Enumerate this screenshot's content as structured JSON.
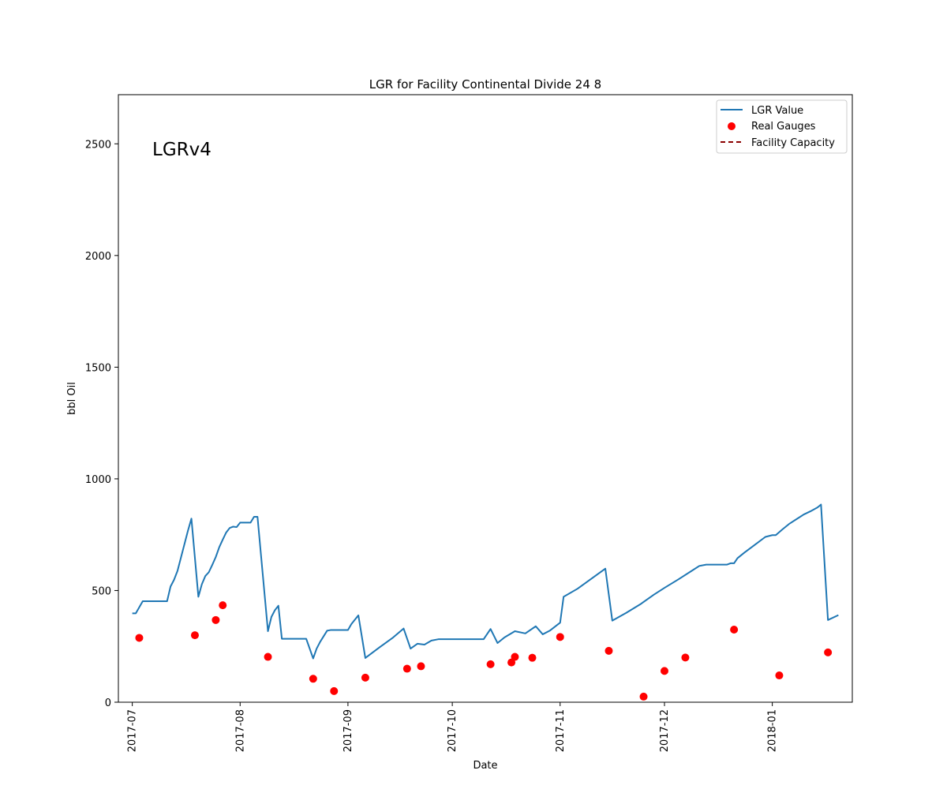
{
  "chart_data": {
    "type": "line",
    "title": "LGR for Facility Continental Divide 24 8",
    "xlabel": "Date",
    "ylabel": "bbl Oil",
    "annotation": "LGRv4",
    "xlim": [
      "2017-06-27",
      "2018-01-24"
    ],
    "ylim": [
      0,
      2720
    ],
    "x_ticks": [
      "2017-07",
      "2017-08",
      "2017-09",
      "2017-10",
      "2017-11",
      "2017-12",
      "2018-01"
    ],
    "y_ticks": [
      0,
      500,
      1000,
      1500,
      2000,
      2500
    ],
    "grid": false,
    "legend_position": "upper right",
    "legend": [
      "LGR Value",
      "Real Gauges",
      "Facility Capacity"
    ],
    "colors": {
      "line": "#1f77b4",
      "gauges": "#ff0000",
      "capacity": "#8b0000"
    },
    "series": [
      {
        "name": "LGR Value",
        "kind": "line",
        "points": [
          [
            "2017-07-01",
            398
          ],
          [
            "2017-07-02",
            398
          ],
          [
            "2017-07-04",
            452
          ],
          [
            "2017-07-06",
            452
          ],
          [
            "2017-07-10",
            452
          ],
          [
            "2017-07-11",
            452
          ],
          [
            "2017-07-12",
            518
          ],
          [
            "2017-07-13",
            548
          ],
          [
            "2017-07-14",
            588
          ],
          [
            "2017-07-15",
            648
          ],
          [
            "2017-07-16",
            708
          ],
          [
            "2017-07-17",
            768
          ],
          [
            "2017-07-18",
            822
          ],
          [
            "2017-07-20",
            472
          ],
          [
            "2017-07-21",
            528
          ],
          [
            "2017-07-22",
            565
          ],
          [
            "2017-07-23",
            582
          ],
          [
            "2017-07-24",
            615
          ],
          [
            "2017-07-25",
            650
          ],
          [
            "2017-07-26",
            694
          ],
          [
            "2017-07-27",
            728
          ],
          [
            "2017-07-28",
            760
          ],
          [
            "2017-07-29",
            780
          ],
          [
            "2017-07-30",
            786
          ],
          [
            "2017-07-31",
            784
          ],
          [
            "2017-08-01",
            804
          ],
          [
            "2017-08-04",
            804
          ],
          [
            "2017-08-05",
            830
          ],
          [
            "2017-08-06",
            830
          ],
          [
            "2017-08-09",
            318
          ],
          [
            "2017-08-10",
            382
          ],
          [
            "2017-08-11",
            412
          ],
          [
            "2017-08-12",
            432
          ],
          [
            "2017-08-13",
            284
          ],
          [
            "2017-08-20",
            284
          ],
          [
            "2017-08-22",
            196
          ],
          [
            "2017-08-23",
            240
          ],
          [
            "2017-08-24",
            270
          ],
          [
            "2017-08-26",
            320
          ],
          [
            "2017-08-27",
            323
          ],
          [
            "2017-09-01",
            323
          ],
          [
            "2017-09-02",
            350
          ],
          [
            "2017-09-04",
            389
          ],
          [
            "2017-09-06",
            198
          ],
          [
            "2017-09-10",
            245
          ],
          [
            "2017-09-14",
            290
          ],
          [
            "2017-09-17",
            330
          ],
          [
            "2017-09-19",
            240
          ],
          [
            "2017-09-21",
            262
          ],
          [
            "2017-09-23",
            258
          ],
          [
            "2017-09-25",
            276
          ],
          [
            "2017-09-27",
            282
          ],
          [
            "2017-10-05",
            282
          ],
          [
            "2017-10-09",
            282
          ],
          [
            "2017-10-10",
            282
          ],
          [
            "2017-10-12",
            328
          ],
          [
            "2017-10-14",
            265
          ],
          [
            "2017-10-16",
            290
          ],
          [
            "2017-10-19",
            318
          ],
          [
            "2017-10-22",
            308
          ],
          [
            "2017-10-25",
            340
          ],
          [
            "2017-10-27",
            304
          ],
          [
            "2017-10-29",
            320
          ],
          [
            "2017-11-01",
            356
          ],
          [
            "2017-11-02",
            472
          ],
          [
            "2017-11-06",
            508
          ],
          [
            "2017-11-14",
            598
          ],
          [
            "2017-11-16",
            365
          ],
          [
            "2017-11-20",
            400
          ],
          [
            "2017-11-24",
            438
          ],
          [
            "2017-11-28",
            482
          ],
          [
            "2017-12-01",
            512
          ],
          [
            "2017-12-05",
            550
          ],
          [
            "2017-12-09",
            590
          ],
          [
            "2017-12-11",
            610
          ],
          [
            "2017-12-13",
            616
          ],
          [
            "2017-12-16",
            616
          ],
          [
            "2017-12-19",
            616
          ],
          [
            "2017-12-20",
            622
          ],
          [
            "2017-12-21",
            622
          ],
          [
            "2017-12-22",
            645
          ],
          [
            "2017-12-24",
            670
          ],
          [
            "2017-12-27",
            705
          ],
          [
            "2017-12-30",
            740
          ],
          [
            "2018-01-01",
            748
          ],
          [
            "2018-01-02",
            748
          ],
          [
            "2018-01-04",
            775
          ],
          [
            "2018-01-06",
            800
          ],
          [
            "2018-01-08",
            820
          ],
          [
            "2018-01-10",
            840
          ],
          [
            "2018-01-12",
            855
          ],
          [
            "2018-01-14",
            872
          ],
          [
            "2018-01-15",
            885
          ],
          [
            "2018-01-17",
            368
          ],
          [
            "2018-01-20",
            390
          ]
        ]
      },
      {
        "name": "Real Gauges",
        "kind": "scatter",
        "points": [
          [
            "2017-07-03",
            288
          ],
          [
            "2017-07-19",
            300
          ],
          [
            "2017-07-25",
            368
          ],
          [
            "2017-07-27",
            434
          ],
          [
            "2017-08-09",
            203
          ],
          [
            "2017-08-22",
            105
          ],
          [
            "2017-08-28",
            50
          ],
          [
            "2017-09-06",
            110
          ],
          [
            "2017-09-18",
            150
          ],
          [
            "2017-09-22",
            161
          ],
          [
            "2017-10-12",
            170
          ],
          [
            "2017-10-18",
            178
          ],
          [
            "2017-10-19",
            203
          ],
          [
            "2017-10-24",
            199
          ],
          [
            "2017-11-01",
            292
          ],
          [
            "2017-11-15",
            230
          ],
          [
            "2017-11-25",
            25
          ],
          [
            "2017-12-01",
            140
          ],
          [
            "2017-12-07",
            200
          ],
          [
            "2017-12-21",
            325
          ],
          [
            "2018-01-03",
            120
          ],
          [
            "2018-01-17",
            223
          ]
        ]
      },
      {
        "name": "Facility Capacity",
        "kind": "dashed-line",
        "points": []
      }
    ]
  }
}
